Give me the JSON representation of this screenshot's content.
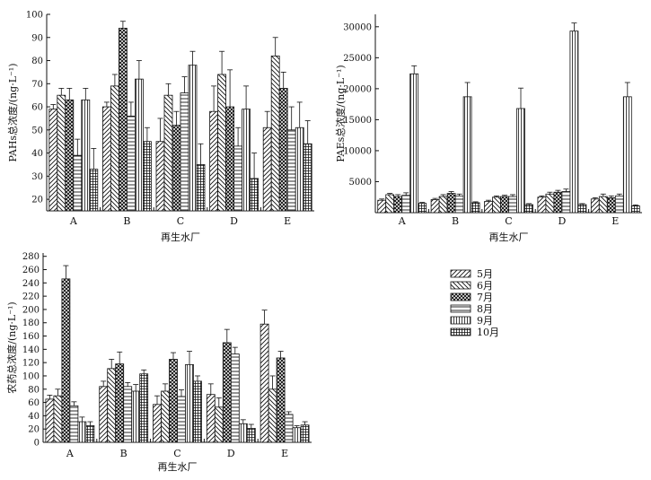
{
  "legend": {
    "entries": [
      "5月",
      "6月",
      "7月",
      "8月",
      "9月",
      "10月"
    ]
  },
  "chart_data": [
    {
      "type": "bar",
      "ylabel": "PAHs总浓度/(ng·L⁻¹)",
      "xlabel": "再生水厂",
      "categories": [
        "A",
        "B",
        "C",
        "D",
        "E"
      ],
      "ylim": [
        15,
        100
      ],
      "yticks": [
        20,
        30,
        40,
        50,
        60,
        70,
        80,
        90,
        100
      ],
      "series": [
        {
          "name": "5月",
          "values": [
            59,
            60,
            45,
            58,
            51
          ],
          "errors": [
            2,
            2,
            10,
            11,
            7
          ]
        },
        {
          "name": "6月",
          "values": [
            65,
            69,
            65,
            74,
            82
          ],
          "errors": [
            3,
            5,
            5,
            10,
            8
          ]
        },
        {
          "name": "7月",
          "values": [
            63,
            94,
            52,
            60,
            68
          ],
          "errors": [
            5,
            3,
            6,
            16,
            7
          ]
        },
        {
          "name": "8月",
          "values": [
            39,
            56,
            66,
            43,
            50
          ],
          "errors": [
            7,
            6,
            7,
            8,
            10
          ]
        },
        {
          "name": "9月",
          "values": [
            63,
            72,
            78,
            59,
            51
          ],
          "errors": [
            5,
            8,
            6,
            10,
            11
          ]
        },
        {
          "name": "10月",
          "values": [
            33,
            45,
            35,
            29,
            44
          ],
          "errors": [
            9,
            6,
            9,
            11,
            10
          ]
        }
      ]
    },
    {
      "type": "bar",
      "ylabel": "PAEs总浓度/(ng·L⁻¹)",
      "xlabel": "再生水厂",
      "categories": [
        "A",
        "B",
        "C",
        "D",
        "E"
      ],
      "ylim": [
        0,
        32000
      ],
      "yticks": [
        5000,
        10000,
        15000,
        20000,
        25000,
        30000
      ],
      "series": [
        {
          "name": "5月",
          "values": [
            2000,
            2100,
            1800,
            2500,
            2200
          ],
          "errors": [
            200,
            200,
            200,
            200,
            200
          ]
        },
        {
          "name": "6月",
          "values": [
            2900,
            2600,
            2500,
            3000,
            2600
          ],
          "errors": [
            200,
            300,
            200,
            300,
            400
          ]
        },
        {
          "name": "7月",
          "values": [
            2600,
            3100,
            2600,
            3300,
            2400
          ],
          "errors": [
            300,
            300,
            200,
            300,
            300
          ]
        },
        {
          "name": "8月",
          "values": [
            2800,
            2700,
            2600,
            3400,
            2700
          ],
          "errors": [
            400,
            300,
            300,
            400,
            300
          ]
        },
        {
          "name": "9月",
          "values": [
            22400,
            18700,
            16800,
            29300,
            18700
          ],
          "errors": [
            1300,
            2300,
            3300,
            1300,
            2300
          ]
        },
        {
          "name": "10月",
          "values": [
            1500,
            1600,
            1300,
            1300,
            1100
          ],
          "errors": [
            150,
            150,
            150,
            150,
            150
          ]
        }
      ]
    },
    {
      "type": "bar",
      "ylabel": "农药总浓度/(ng·L⁻¹)",
      "xlabel": "再生水厂",
      "categories": [
        "A",
        "B",
        "C",
        "D",
        "E"
      ],
      "ylim": [
        0,
        285
      ],
      "yticks": [
        0,
        20,
        40,
        60,
        80,
        100,
        120,
        140,
        160,
        180,
        200,
        220,
        240,
        260,
        280
      ],
      "series": [
        {
          "name": "5月",
          "values": [
            65,
            84,
            57,
            72,
            178
          ],
          "errors": [
            6,
            8,
            13,
            16,
            21
          ]
        },
        {
          "name": "6月",
          "values": [
            70,
            111,
            77,
            53,
            80
          ],
          "errors": [
            10,
            14,
            11,
            14,
            20
          ]
        },
        {
          "name": "7月",
          "values": [
            246,
            118,
            125,
            150,
            127
          ],
          "errors": [
            20,
            18,
            10,
            20,
            10
          ]
        },
        {
          "name": "8月",
          "values": [
            55,
            84,
            69,
            133,
            42
          ],
          "errors": [
            6,
            6,
            10,
            10,
            4
          ]
        },
        {
          "name": "9月",
          "values": [
            31,
            77,
            117,
            28,
            22
          ],
          "errors": [
            7,
            10,
            20,
            6,
            3
          ]
        },
        {
          "name": "10月",
          "values": [
            25,
            103,
            92,
            21,
            26
          ],
          "errors": [
            6,
            6,
            8,
            6,
            5
          ]
        }
      ]
    }
  ]
}
